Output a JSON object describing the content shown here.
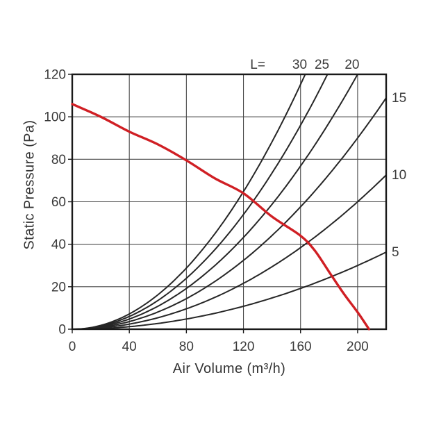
{
  "figure": {
    "background": "#ffffff",
    "description": "Fan static pressure vs air volume performance chart with duct-length system resistance curves"
  },
  "chart_data": {
    "type": "line",
    "title": "",
    "xlabel": "Air Volume (m³/h)",
    "ylabel": "Static Pressure (Pa)",
    "xlim": [
      0,
      220
    ],
    "ylim": [
      0,
      120
    ],
    "x_ticks": [
      0,
      40,
      80,
      120,
      160,
      200
    ],
    "y_ticks": [
      0,
      20,
      40,
      60,
      80,
      100,
      120
    ],
    "grid": true,
    "legend_position": "labels-at-curve-ends",
    "colors": {
      "fan_curve": "#d01f24",
      "system_curve": "#262626",
      "grid": "#4a4a4a",
      "frame": "#1a1a1a",
      "text": "#3a3a3a"
    },
    "series": [
      {
        "name": "fan-performance-curve",
        "role": "fan_performance",
        "color_key": "fan_curve",
        "points": [
          [
            0,
            106
          ],
          [
            20,
            100
          ],
          [
            40,
            93
          ],
          [
            60,
            87
          ],
          [
            80,
            79.5
          ],
          [
            100,
            71
          ],
          [
            120,
            64
          ],
          [
            140,
            53
          ],
          [
            160,
            44
          ],
          [
            170,
            37
          ],
          [
            180,
            27
          ],
          [
            190,
            17
          ],
          [
            200,
            8
          ],
          [
            208,
            0
          ]
        ]
      },
      {
        "name": "system-resistance-curves",
        "role": "system_resistance",
        "color_key": "system_curve",
        "model": "P = k * L * Q^2",
        "k": 0.00015,
        "label_prefix": "L=",
        "L_values": [
          30,
          25,
          20,
          15,
          10,
          5
        ],
        "labels": [
          "30",
          "25",
          "20",
          "15",
          "10",
          "5"
        ]
      }
    ]
  }
}
